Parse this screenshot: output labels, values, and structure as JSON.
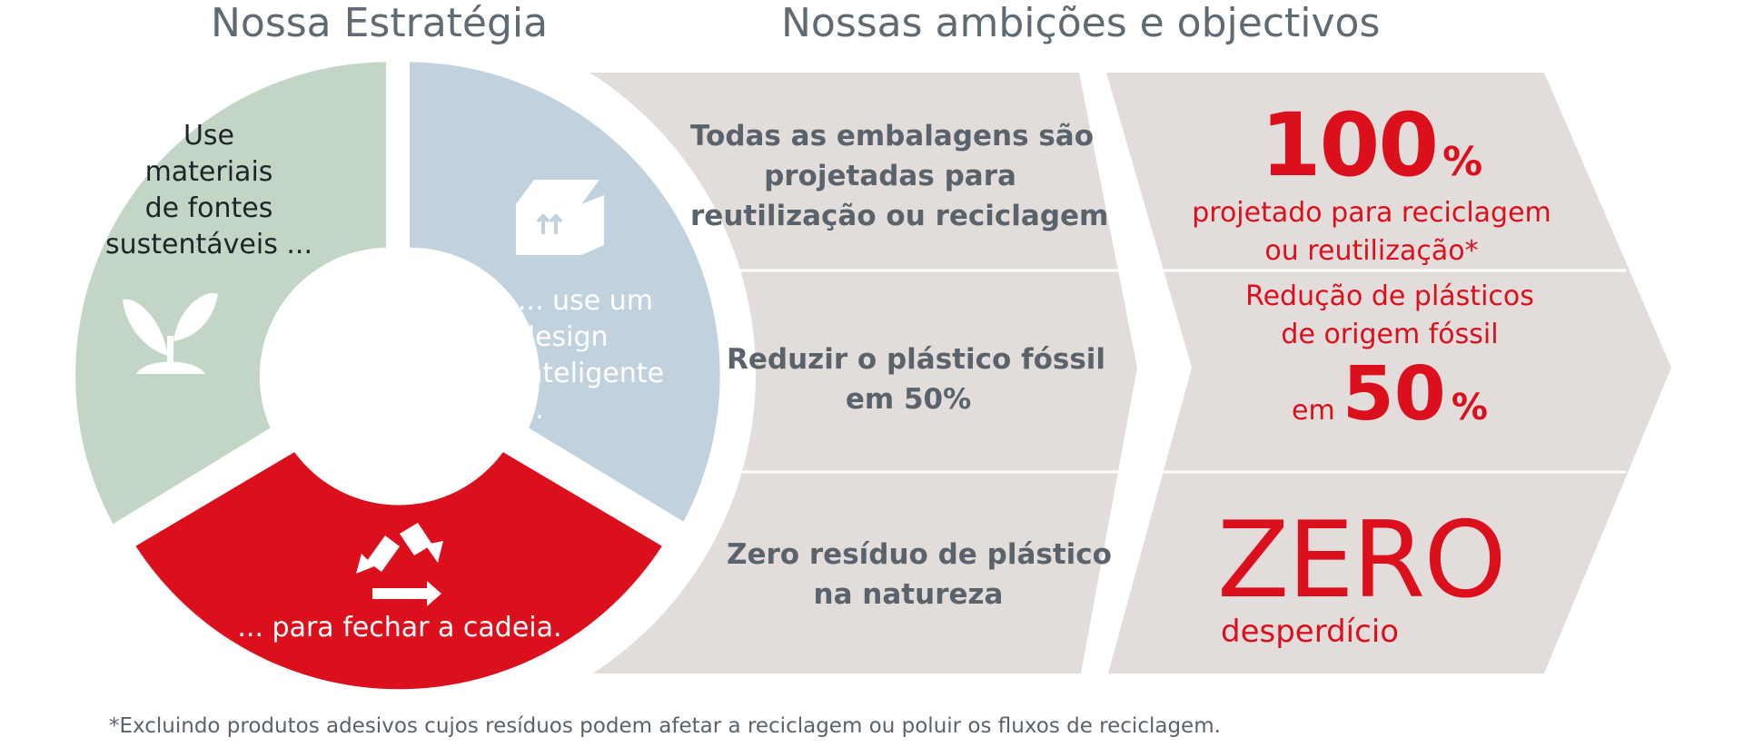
{
  "headings": {
    "strategy": "Nossa Estratégia",
    "ambitions": "Nossas ambições e objectivos"
  },
  "strategy_segments": [
    {
      "lines": [
        "Use",
        "materiais",
        "de fontes",
        "sustentáveis ..."
      ],
      "icon": "plant-icon",
      "color": "#c3d5c4"
    },
    {
      "lines": [
        "... use um",
        "design",
        "inteligente",
        "..."
      ],
      "icon": "box-icon",
      "color": "#c1d1de"
    },
    {
      "lines": [
        "... para fechar a cadeia."
      ],
      "icon": "recycle-icon",
      "color": "#dc0f1c"
    }
  ],
  "ambitions": [
    {
      "lines": [
        "Todas as embalagens são",
        "projetadas para",
        "reutilização ou reciclagem"
      ]
    },
    {
      "lines": [
        "Reduzir o plástico fóssil",
        "em 50%"
      ]
    },
    {
      "lines": [
        "Zero resíduo de plástico",
        "na natureza"
      ]
    }
  ],
  "goals": [
    {
      "big": "100",
      "suffix": "%",
      "lines": [
        "projetado para reciclagem",
        "ou reutilização*"
      ]
    },
    {
      "lines": [
        "Redução de plásticos",
        "de origem fóssil"
      ],
      "prefix": "em",
      "big": "50",
      "suffix": "%"
    },
    {
      "big": "ZERO",
      "sub": "desperdício"
    }
  ],
  "footnote": "*Excluindo produtos adesivos cujos resíduos podem afetar a reciclagem ou poluir os fluxos de reciclagem.",
  "colors": {
    "accent_red": "#dc0f1c",
    "green_segment": "#c3d5c4",
    "blue_segment": "#c1d1de",
    "panel_bg": "#e2dcdb",
    "heading_text": "#5f6a73",
    "body_text": "#5a636c"
  }
}
